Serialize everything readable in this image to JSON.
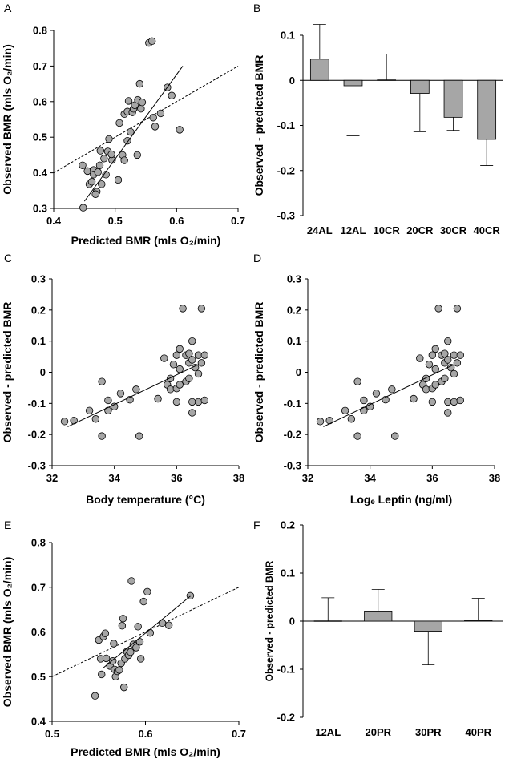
{
  "chart_data": [
    {
      "panel": "A",
      "type": "scatter",
      "xlabel": "Predicted BMR (mls O₂/min)",
      "ylabel": "Observed BMR (mls O₂/min)",
      "xlim": [
        0.4,
        0.7
      ],
      "ylim": [
        0.3,
        0.8
      ],
      "xticks": [
        "0.4",
        "0.5",
        "0.6",
        "0.7"
      ],
      "yticks": [
        "0.3",
        "0.4",
        "0.5",
        "0.6",
        "0.7",
        "0.8"
      ],
      "fit_line": [
        [
          0.45,
          0.32
        ],
        [
          0.61,
          0.7
        ]
      ],
      "identity_line": [
        [
          0.4,
          0.4
        ],
        [
          0.7,
          0.7
        ]
      ],
      "points": [
        [
          0.448,
          0.302
        ],
        [
          0.447,
          0.421
        ],
        [
          0.455,
          0.405
        ],
        [
          0.458,
          0.368
        ],
        [
          0.462,
          0.375
        ],
        [
          0.465,
          0.408
        ],
        [
          0.465,
          0.395
        ],
        [
          0.47,
          0.347
        ],
        [
          0.468,
          0.34
        ],
        [
          0.472,
          0.402
        ],
        [
          0.475,
          0.421
        ],
        [
          0.476,
          0.462
        ],
        [
          0.478,
          0.368
        ],
        [
          0.482,
          0.44
        ],
        [
          0.485,
          0.395
        ],
        [
          0.488,
          0.46
        ],
        [
          0.49,
          0.495
        ],
        [
          0.495,
          0.436
        ],
        [
          0.494,
          0.452
        ],
        [
          0.505,
          0.38
        ],
        [
          0.507,
          0.54
        ],
        [
          0.512,
          0.45
        ],
        [
          0.515,
          0.565
        ],
        [
          0.515,
          0.435
        ],
        [
          0.52,
          0.572
        ],
        [
          0.52,
          0.49
        ],
        [
          0.522,
          0.602
        ],
        [
          0.525,
          0.515
        ],
        [
          0.528,
          0.57
        ],
        [
          0.53,
          0.58
        ],
        [
          0.532,
          0.59
        ],
        [
          0.536,
          0.45
        ],
        [
          0.537,
          0.605
        ],
        [
          0.54,
          0.65
        ],
        [
          0.542,
          0.58
        ],
        [
          0.544,
          0.598
        ],
        [
          0.555,
          0.765
        ],
        [
          0.56,
          0.77
        ],
        [
          0.562,
          0.555
        ],
        [
          0.565,
          0.53
        ],
        [
          0.574,
          0.567
        ],
        [
          0.585,
          0.64
        ],
        [
          0.592,
          0.617
        ],
        [
          0.605,
          0.521
        ]
      ]
    },
    {
      "panel": "B",
      "type": "bar",
      "ylabel": "Observed - predicted BMR",
      "ylim": [
        -0.3,
        0.1
      ],
      "yticks": [
        "0.1",
        "0",
        "-0.1",
        "-0.2",
        "-0.3"
      ],
      "categories": [
        "24AL",
        "12AL",
        "10CR",
        "20CR",
        "30CR",
        "40CR"
      ],
      "values": [
        0.047,
        -0.012,
        0.001,
        -0.029,
        -0.082,
        -0.131
      ],
      "errors": [
        0.077,
        0.111,
        0.057,
        0.085,
        0.029,
        0.058
      ]
    },
    {
      "panel": "C",
      "type": "scatter",
      "xlabel": "Body temperature (°C)",
      "ylabel": "Observed - predicted BMR",
      "xlim": [
        32,
        38
      ],
      "ylim": [
        -0.3,
        0.3
      ],
      "xticks": [
        "32",
        "34",
        "36",
        "38"
      ],
      "yticks": [
        "0.3",
        "0.2",
        "0.1",
        "0",
        "-0.1",
        "-0.2",
        "-0.3"
      ],
      "fit_line": [
        [
          32.5,
          -0.175
        ],
        [
          36.7,
          0.025
        ]
      ],
      "points": [
        [
          32.4,
          -0.158
        ],
        [
          32.7,
          -0.155
        ],
        [
          33.2,
          -0.123
        ],
        [
          33.4,
          -0.15
        ],
        [
          33.6,
          -0.03
        ],
        [
          33.6,
          -0.205
        ],
        [
          33.8,
          -0.123
        ],
        [
          33.8,
          -0.09
        ],
        [
          34.0,
          -0.11
        ],
        [
          34.2,
          -0.068
        ],
        [
          34.5,
          -0.088
        ],
        [
          34.7,
          -0.055
        ],
        [
          34.8,
          -0.205
        ],
        [
          35.4,
          -0.085
        ],
        [
          35.6,
          0.045
        ],
        [
          35.7,
          -0.04
        ],
        [
          35.8,
          -0.055
        ],
        [
          35.8,
          -0.02
        ],
        [
          35.9,
          0.025
        ],
        [
          36.0,
          0.055
        ],
        [
          36.0,
          -0.052
        ],
        [
          36.0,
          -0.095
        ],
        [
          36.1,
          0.075
        ],
        [
          36.1,
          0.01
        ],
        [
          36.1,
          -0.04
        ],
        [
          36.2,
          0.205
        ],
        [
          36.3,
          0.055
        ],
        [
          36.3,
          -0.03
        ],
        [
          36.4,
          0.06
        ],
        [
          36.4,
          0.03
        ],
        [
          36.4,
          -0.02
        ],
        [
          36.5,
          0.1
        ],
        [
          36.5,
          0.04
        ],
        [
          36.5,
          -0.095
        ],
        [
          36.5,
          -0.13
        ],
        [
          36.6,
          0.015
        ],
        [
          36.7,
          0.055
        ],
        [
          36.7,
          -0.005
        ],
        [
          36.7,
          -0.095
        ],
        [
          36.8,
          0.205
        ],
        [
          36.8,
          0.03
        ],
        [
          36.9,
          0.055
        ],
        [
          36.9,
          -0.09
        ]
      ]
    },
    {
      "panel": "D",
      "type": "scatter",
      "xlabel": "Logₑ Leptin (ng/ml)",
      "ylabel": "Observed - predicted BMR",
      "xlim": [
        32,
        38
      ],
      "ylim": [
        -0.3,
        0.3
      ],
      "xticks": [
        "32",
        "34",
        "36",
        "38"
      ],
      "yticks": [
        "0.3",
        "0.2",
        "0.1",
        "0",
        "-0.1",
        "-0.2",
        "-0.3"
      ],
      "fit_line": [
        [
          32.5,
          -0.175
        ],
        [
          36.7,
          0.025
        ]
      ],
      "points": [
        [
          32.4,
          -0.158
        ],
        [
          32.7,
          -0.155
        ],
        [
          33.2,
          -0.123
        ],
        [
          33.4,
          -0.15
        ],
        [
          33.6,
          -0.03
        ],
        [
          33.6,
          -0.205
        ],
        [
          33.8,
          -0.123
        ],
        [
          33.8,
          -0.09
        ],
        [
          34.0,
          -0.11
        ],
        [
          34.2,
          -0.068
        ],
        [
          34.5,
          -0.088
        ],
        [
          34.7,
          -0.055
        ],
        [
          34.8,
          -0.205
        ],
        [
          35.4,
          -0.085
        ],
        [
          35.6,
          0.045
        ],
        [
          35.7,
          -0.04
        ],
        [
          35.8,
          -0.055
        ],
        [
          35.8,
          -0.02
        ],
        [
          35.9,
          0.025
        ],
        [
          36.0,
          0.055
        ],
        [
          36.0,
          -0.052
        ],
        [
          36.0,
          -0.095
        ],
        [
          36.1,
          0.075
        ],
        [
          36.1,
          0.01
        ],
        [
          36.1,
          -0.04
        ],
        [
          36.2,
          0.205
        ],
        [
          36.3,
          0.055
        ],
        [
          36.3,
          -0.03
        ],
        [
          36.4,
          0.06
        ],
        [
          36.4,
          0.03
        ],
        [
          36.4,
          -0.02
        ],
        [
          36.5,
          0.1
        ],
        [
          36.5,
          0.04
        ],
        [
          36.5,
          -0.095
        ],
        [
          36.5,
          -0.13
        ],
        [
          36.6,
          0.015
        ],
        [
          36.7,
          0.055
        ],
        [
          36.7,
          -0.005
        ],
        [
          36.7,
          -0.095
        ],
        [
          36.8,
          0.205
        ],
        [
          36.8,
          0.03
        ],
        [
          36.9,
          0.055
        ],
        [
          36.9,
          -0.09
        ]
      ]
    },
    {
      "panel": "E",
      "type": "scatter",
      "xlabel": "Predicted BMR (mls O₂/min)",
      "ylabel": "Observed BMR (mls O₂/min)",
      "xlim": [
        0.5,
        0.7
      ],
      "ylim": [
        0.4,
        0.8
      ],
      "xticks": [
        "0.5",
        "0.6",
        "0.7"
      ],
      "yticks": [
        "0.4",
        "0.5",
        "0.6",
        "0.7",
        "0.8"
      ],
      "fit_line": [
        [
          0.555,
          0.52
        ],
        [
          0.648,
          0.68
        ]
      ],
      "identity_line": [
        [
          0.5,
          0.5
        ],
        [
          0.7,
          0.7
        ]
      ],
      "points": [
        [
          0.546,
          0.457
        ],
        [
          0.55,
          0.582
        ],
        [
          0.552,
          0.54
        ],
        [
          0.553,
          0.505
        ],
        [
          0.555,
          0.59
        ],
        [
          0.557,
          0.597
        ],
        [
          0.558,
          0.541
        ],
        [
          0.562,
          0.524
        ],
        [
          0.565,
          0.535
        ],
        [
          0.566,
          0.574
        ],
        [
          0.567,
          0.516
        ],
        [
          0.568,
          0.5
        ],
        [
          0.57,
          0.512
        ],
        [
          0.572,
          0.515
        ],
        [
          0.574,
          0.53
        ],
        [
          0.575,
          0.614
        ],
        [
          0.576,
          0.63
        ],
        [
          0.577,
          0.476
        ],
        [
          0.578,
          0.54
        ],
        [
          0.58,
          0.556
        ],
        [
          0.582,
          0.548
        ],
        [
          0.584,
          0.555
        ],
        [
          0.585,
          0.714
        ],
        [
          0.587,
          0.572
        ],
        [
          0.59,
          0.565
        ],
        [
          0.592,
          0.612
        ],
        [
          0.594,
          0.578
        ],
        [
          0.595,
          0.54
        ],
        [
          0.598,
          0.668
        ],
        [
          0.602,
          0.69
        ],
        [
          0.605,
          0.598
        ],
        [
          0.618,
          0.62
        ],
        [
          0.625,
          0.615
        ],
        [
          0.648,
          0.681
        ]
      ]
    },
    {
      "panel": "F",
      "type": "bar",
      "ylabel": "Observed - predicted BMR",
      "ylim": [
        -0.2,
        0.2
      ],
      "yticks": [
        "0.2",
        "0.1",
        "0",
        "-0.1",
        "-0.2"
      ],
      "categories": [
        "12AL",
        "20PR",
        "30PR",
        "40PR"
      ],
      "values": [
        0.0005,
        0.021,
        -0.021,
        0.0015
      ],
      "errors": [
        0.048,
        0.045,
        0.07,
        0.046
      ]
    }
  ]
}
